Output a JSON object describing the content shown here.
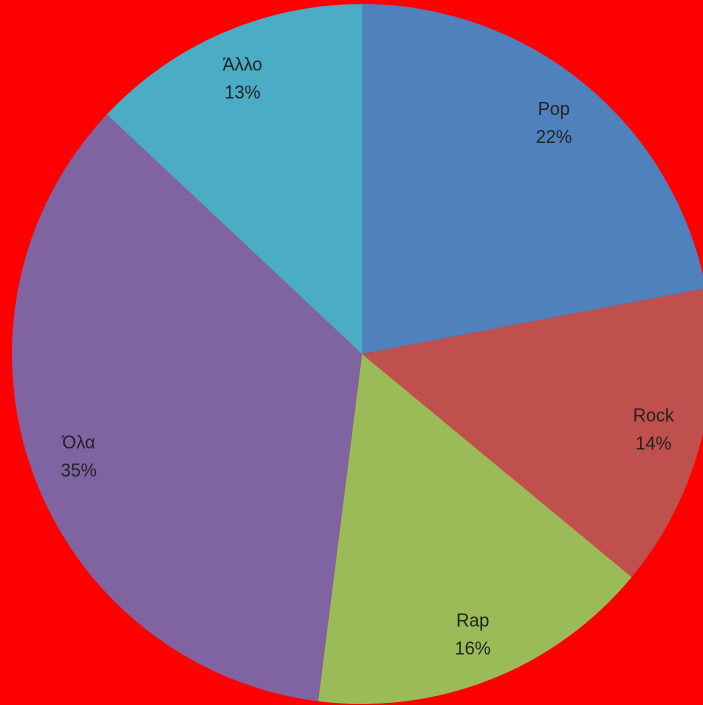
{
  "chart_data": {
    "type": "pie",
    "categories": [
      "Pop",
      "Rock",
      "Rap",
      "Όλα",
      "Άλλο"
    ],
    "values": [
      22,
      14,
      16,
      35,
      13
    ],
    "value_labels": [
      "22%",
      "14%",
      "16%",
      "35%",
      "13%"
    ],
    "colors": [
      "#4f81bd",
      "#c0504d",
      "#9bbb59",
      "#8064a2",
      "#4bacc6"
    ],
    "background": "#ff0000"
  }
}
